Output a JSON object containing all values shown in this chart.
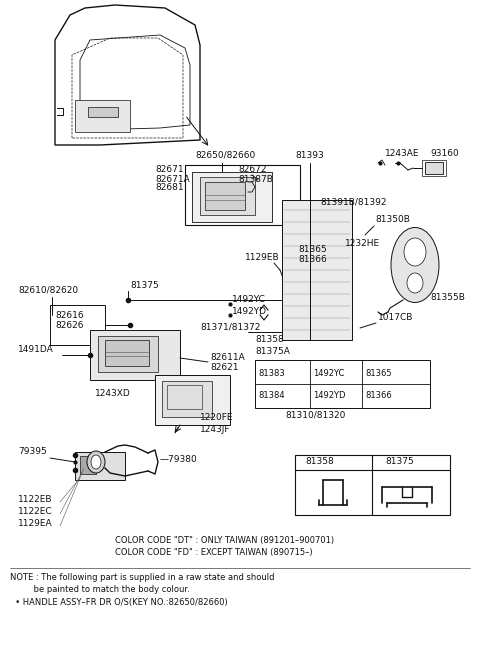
{
  "bg_color": "#ffffff",
  "fig_width": 4.8,
  "fig_height": 6.55,
  "dpi": 100,
  "note_line1": "NOTE : The following part is supplied in a raw state and should",
  "note_line2": "         be painted to match the body colour.",
  "note_line3": "  • HANDLE ASSY–FR DR O/S(KEY NO.:82650/82660)",
  "color_line1": "COLOR CODE \"DT\" : ONLY TAIWAN (891201–900701)",
  "color_line2": "COLOR CODE \"FD\" : EXCEPT TAIWAN (890715–)"
}
